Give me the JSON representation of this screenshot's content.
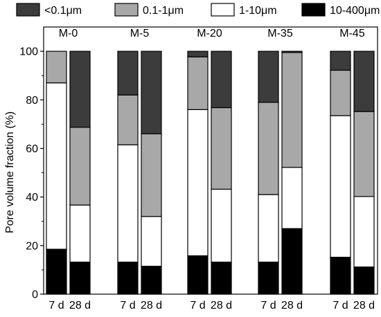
{
  "chart_data": {
    "type": "bar",
    "stacked": true,
    "ylabel": "Pore volume fraction (%)",
    "ylim": [
      0,
      110
    ],
    "yticks": [
      0,
      20,
      40,
      60,
      80,
      100
    ],
    "legend": [
      {
        "name": "<0.1μm",
        "color": "#3c3c3c"
      },
      {
        "name": "0.1-1μm",
        "color": "#a8a8a8"
      },
      {
        "name": "1-10μm",
        "color": "#ffffff"
      },
      {
        "name": "10-400μm",
        "color": "#000000"
      }
    ],
    "groups": [
      "M-0",
      "M-5",
      "M-20",
      "M-35",
      "M-45"
    ],
    "categories": [
      "7 d",
      "28 d",
      "7 d",
      "28 d",
      "7 d",
      "28 d",
      "7 d",
      "28 d",
      "7 d",
      "28 d"
    ],
    "series": [
      {
        "name": "10-400μm",
        "values": [
          18.5,
          13.2,
          13.2,
          11.5,
          15.8,
          13.2,
          13.2,
          27.0,
          15.2,
          11.2
        ]
      },
      {
        "name": "1-10μm",
        "values": [
          68.5,
          23.5,
          48.3,
          20.5,
          60.2,
          30.0,
          27.8,
          25.2,
          58.3,
          29.0
        ]
      },
      {
        "name": "0.1-1μm",
        "values": [
          13.0,
          32.0,
          20.5,
          34.0,
          21.7,
          33.6,
          38.0,
          47.3,
          18.7,
          35.0
        ]
      },
      {
        "name": "<0.1μm",
        "values": [
          0.0,
          31.3,
          18.0,
          34.0,
          2.3,
          23.2,
          21.0,
          0.5,
          7.8,
          24.8
        ]
      }
    ]
  }
}
